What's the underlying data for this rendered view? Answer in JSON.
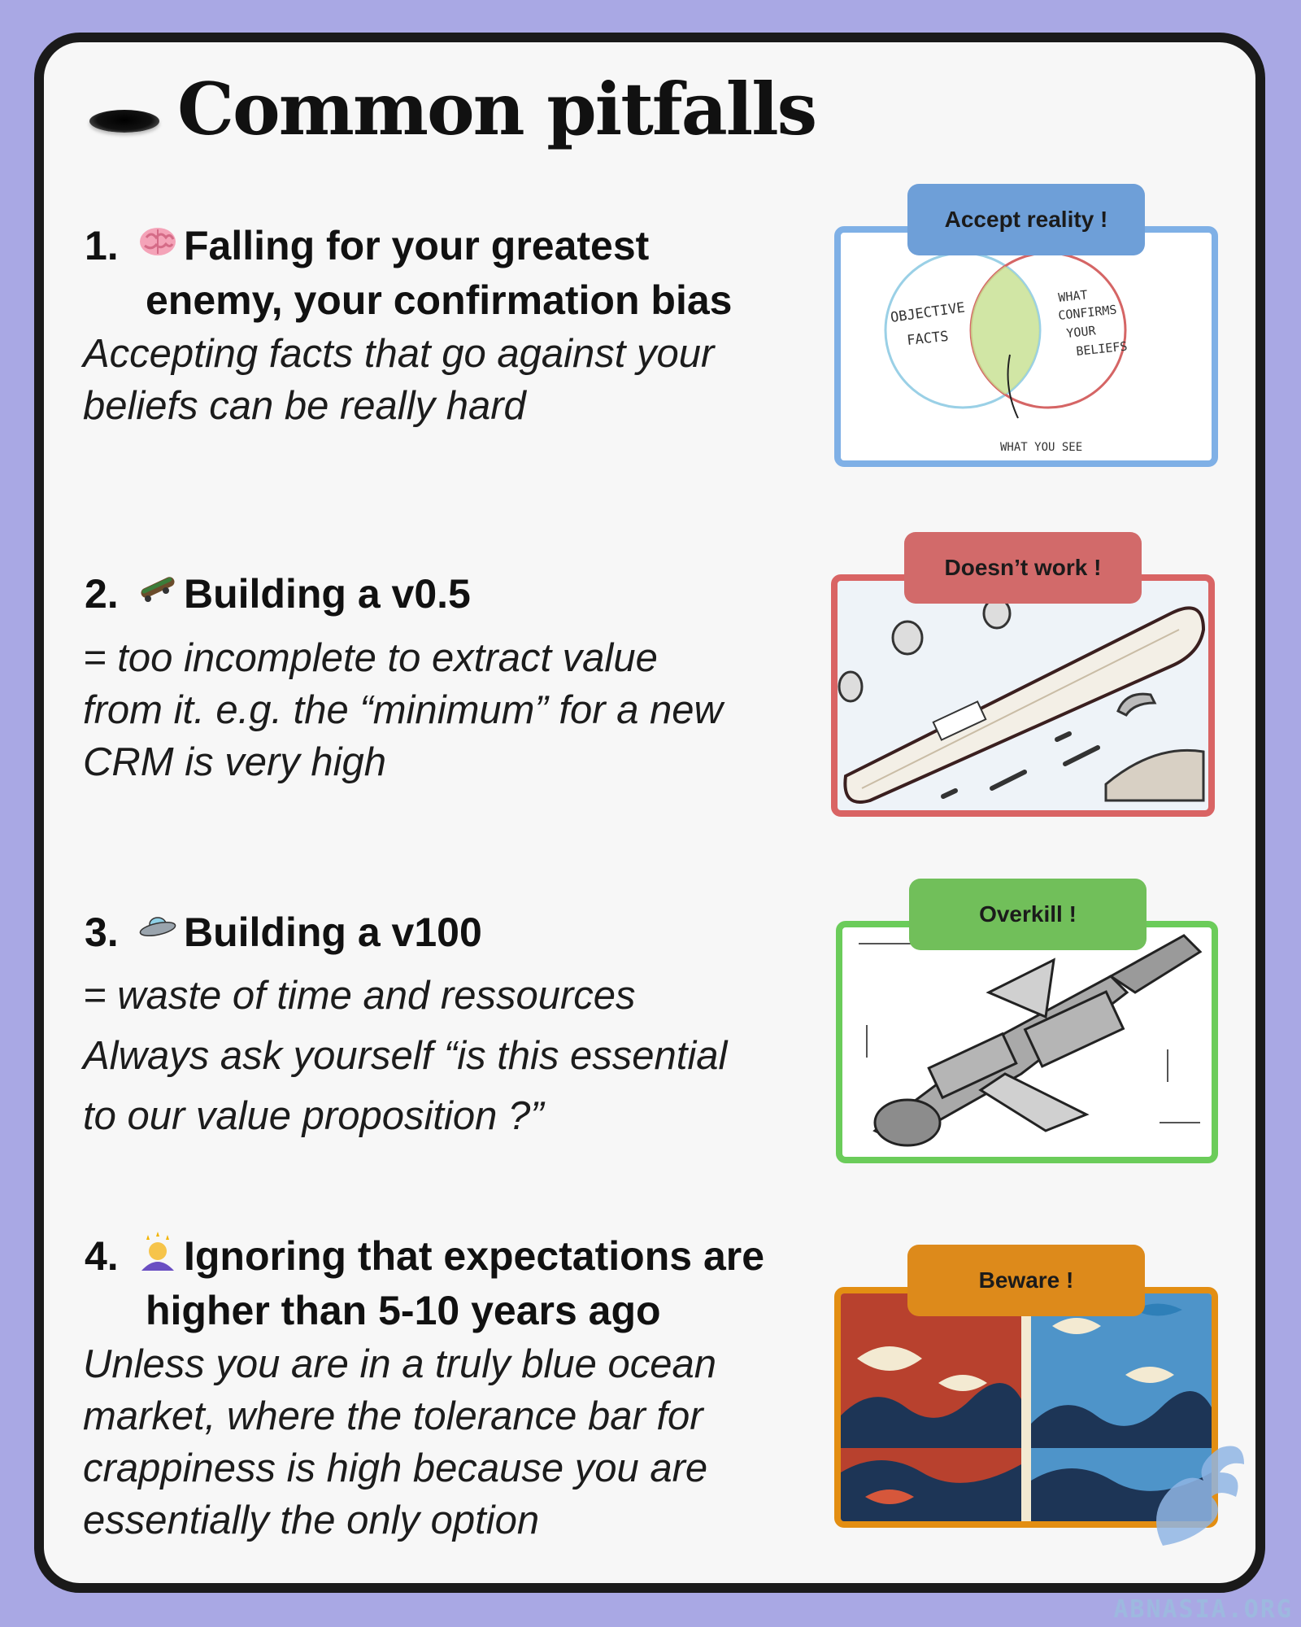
{
  "title": "Common pitfalls",
  "icons": {
    "title": "hole-icon",
    "item1": "brain-icon",
    "item2": "skateboard-icon",
    "item3": "flying-saucer-icon",
    "item4": "dizzy-person-icon"
  },
  "items": [
    {
      "number": "1.",
      "heading_line1": "Falling for your greatest",
      "heading_line2": "enemy, your confirmation bias",
      "desc_lines": [
        "Accepting facts that go against your",
        "beliefs can be really hard"
      ],
      "tag": "Accept reality !",
      "tag_color": "#6e9fd8",
      "frame_color": "#7fb0e6",
      "illustration": {
        "left_label_line1": "OBJECTIVE",
        "left_label_line2": "FACTS",
        "right_label_line1": "WHAT",
        "right_label_line2": "CONFIRMS",
        "right_label_line3": "YOUR",
        "right_label_line4": "BELIEFS",
        "bottom_label": "WHAT YOU SEE"
      }
    },
    {
      "number": "2.",
      "heading_line1": "Building a v0.5",
      "desc_lines": [
        "= too incomplete to extract value",
        "from it. e.g. the “minimum” for a new",
        "CRM is very high"
      ],
      "tag": "Doesn’t work !",
      "tag_color": "#d26a6a",
      "frame_color": "#d96464"
    },
    {
      "number": "3.",
      "heading_line1": "Building a v100",
      "desc_lines": [
        "= waste of time and ressources",
        "Always ask yourself “is this essential",
        "to our value proposition ?”"
      ],
      "tag": "Overkill !",
      "tag_color": "#71bf5a",
      "frame_color": "#6bcc5a"
    },
    {
      "number": "4.",
      "heading_line1": "Ignoring that expectations are",
      "heading_line2": "higher than 5-10 years ago",
      "desc_lines": [
        "Unless you are in a truly blue ocean",
        "market, where the tolerance bar for",
        "crappiness is high because you are",
        "essentially the only option"
      ],
      "tag": "Beware !",
      "tag_color": "#dd8a1b",
      "frame_color": "#e38e12"
    }
  ],
  "watermark": "ABNASIA.ORG"
}
